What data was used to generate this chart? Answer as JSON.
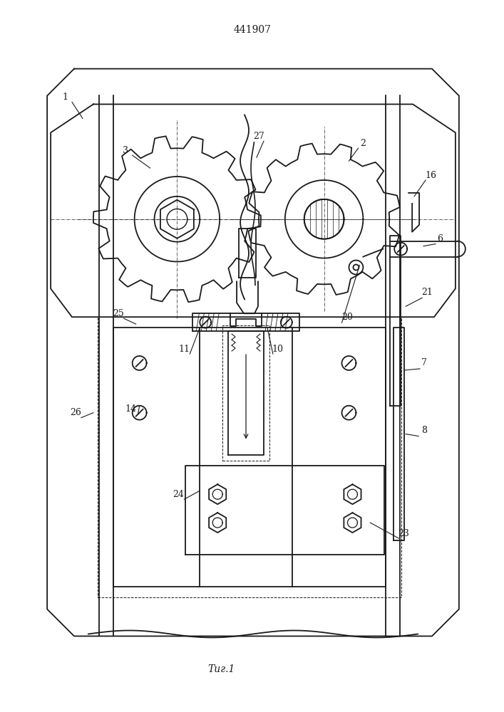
{
  "title": "441907",
  "caption": "Τиг.1",
  "bg_color": "#ffffff",
  "line_color": "#1a1a1a",
  "title_fontsize": 10,
  "caption_fontsize": 10,
  "label_fontsize": 9
}
